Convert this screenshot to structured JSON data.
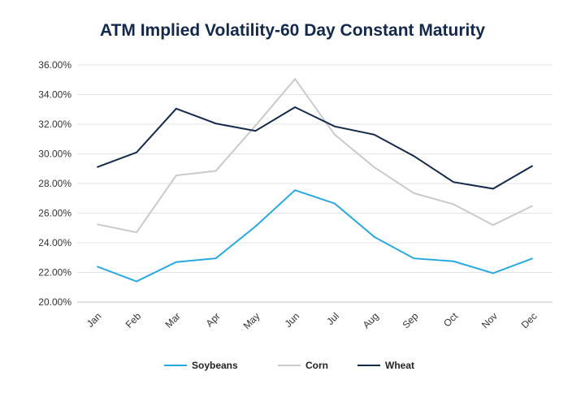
{
  "chart_data": {
    "type": "line",
    "title": "ATM Implied Volatility-60 Day Constant Maturity",
    "categories": [
      "Jan",
      "Feb",
      "Mar",
      "Apr",
      "May",
      "Jun",
      "Jul",
      "Aug",
      "Sep",
      "Oct",
      "Nov",
      "Dec"
    ],
    "y_ticks": [
      "20.00%",
      "22.00%",
      "24.00%",
      "26.00%",
      "28.00%",
      "30.00%",
      "32.00%",
      "34.00%",
      "36.00%"
    ],
    "ylim": [
      20,
      36
    ],
    "grid": true,
    "legend_position": "bottom",
    "series": [
      {
        "name": "Soybeans",
        "color": "#29a8df",
        "values": [
          22.4,
          21.4,
          22.7,
          22.95,
          25.1,
          27.55,
          26.65,
          24.4,
          22.95,
          22.75,
          21.95,
          22.95
        ]
      },
      {
        "name": "Corn",
        "color": "#c8cacc",
        "values": [
          25.25,
          24.7,
          28.55,
          28.85,
          31.9,
          35.05,
          31.3,
          29.1,
          27.35,
          26.6,
          25.2,
          26.5
        ]
      },
      {
        "name": "Wheat",
        "color": "#13294b",
        "values": [
          29.1,
          30.1,
          33.05,
          32.05,
          31.55,
          33.15,
          31.85,
          31.3,
          29.85,
          28.1,
          27.65,
          29.2
        ]
      }
    ]
  }
}
